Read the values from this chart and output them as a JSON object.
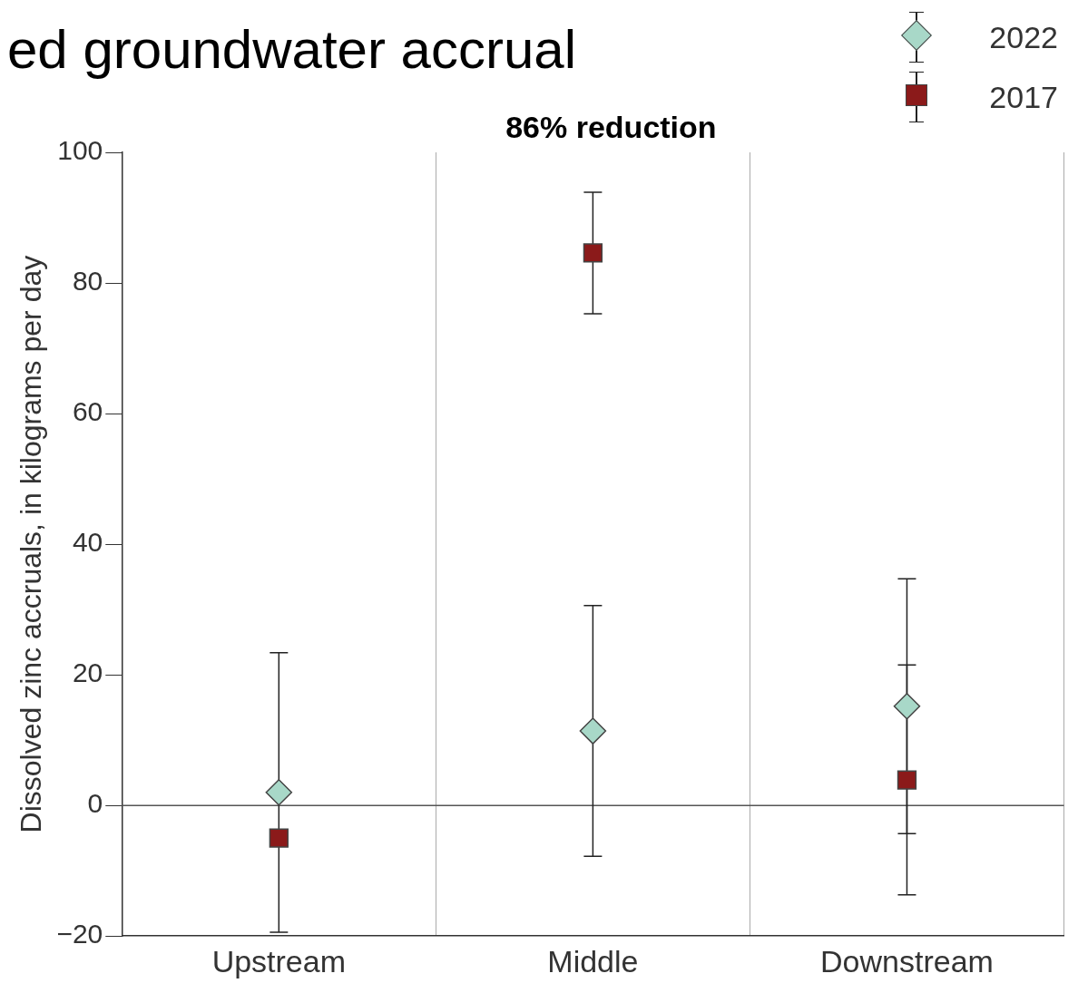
{
  "chart_data": {
    "type": "scatter",
    "title": "ed groundwater accrual",
    "ylabel": "Dissolved zinc accruals, in kilograms per day",
    "categories": [
      "Upstream",
      "Middle",
      "Downstream"
    ],
    "series": [
      {
        "name": "2022",
        "color": "#a8d8c8",
        "marker": "diamond",
        "values": [
          2,
          11.4,
          15.2
        ],
        "errors": [
          21.4,
          19.2,
          19.5
        ]
      },
      {
        "name": "2017",
        "color": "#8b1a1a",
        "marker": "square",
        "values": [
          -5,
          84.6,
          3.9
        ],
        "errors": [
          null,
          9.3,
          17.6
        ]
      }
    ],
    "ylim": [
      -20,
      100
    ],
    "yticks": [
      -20,
      0,
      20,
      40,
      60,
      80,
      100
    ],
    "grid": "x",
    "legend": "top right",
    "ref_lines": [
      {
        "axis": "y",
        "value": 0,
        "color": "#555555"
      }
    ],
    "annotations": [
      "86% reduction"
    ]
  }
}
